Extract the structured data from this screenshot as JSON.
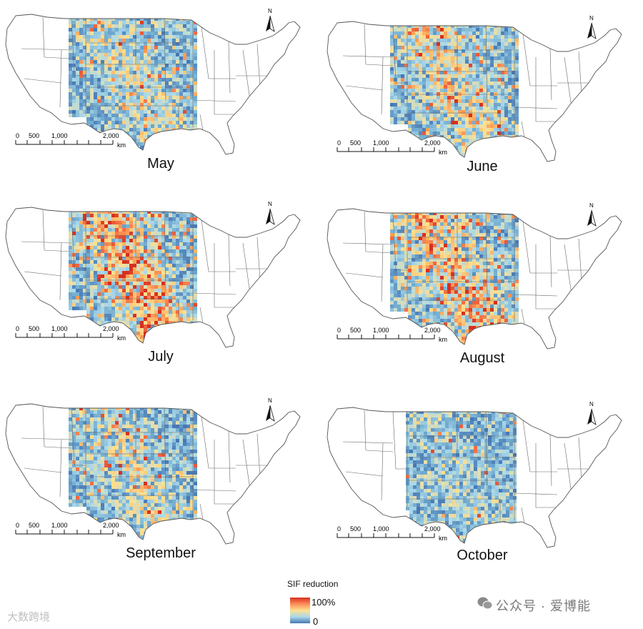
{
  "panels": [
    {
      "month": "May",
      "scale_ticks": [
        "0",
        "500",
        "1,000",
        "2,000"
      ],
      "unit": "km",
      "north_label": "N",
      "hot_share": 0.25
    },
    {
      "month": "June",
      "scale_ticks": [
        "0",
        "500",
        "1,000",
        "2,000"
      ],
      "unit": "km",
      "north_label": "N",
      "hot_share": 0.35
    },
    {
      "month": "July",
      "scale_ticks": [
        "0",
        "500",
        "1,000",
        "2,000"
      ],
      "unit": "km",
      "north_label": "N",
      "hot_share": 0.55
    },
    {
      "month": "August",
      "scale_ticks": [
        "0",
        "500",
        "1,000",
        "2,000"
      ],
      "unit": "km",
      "north_label": "N",
      "hot_share": 0.45
    },
    {
      "month": "September",
      "scale_ticks": [
        "0",
        "500",
        "1,000",
        "2,000"
      ],
      "unit": "km",
      "north_label": "N",
      "hot_share": 0.25
    },
    {
      "month": "October",
      "scale_ticks": [
        "0",
        "500",
        "1,000",
        "2,000"
      ],
      "unit": "km",
      "north_label": "N",
      "hot_share": 0.12
    }
  ],
  "legend": {
    "title": "SIF reduction",
    "max_label": "100%",
    "min_label": "0"
  },
  "colors": {
    "low": "#4575b4",
    "mid": "#fee090",
    "high": "#d7301f",
    "outline": "#555555"
  },
  "watermarks": {
    "left": "大数跨境",
    "right": "公众号 · 爱博能"
  }
}
